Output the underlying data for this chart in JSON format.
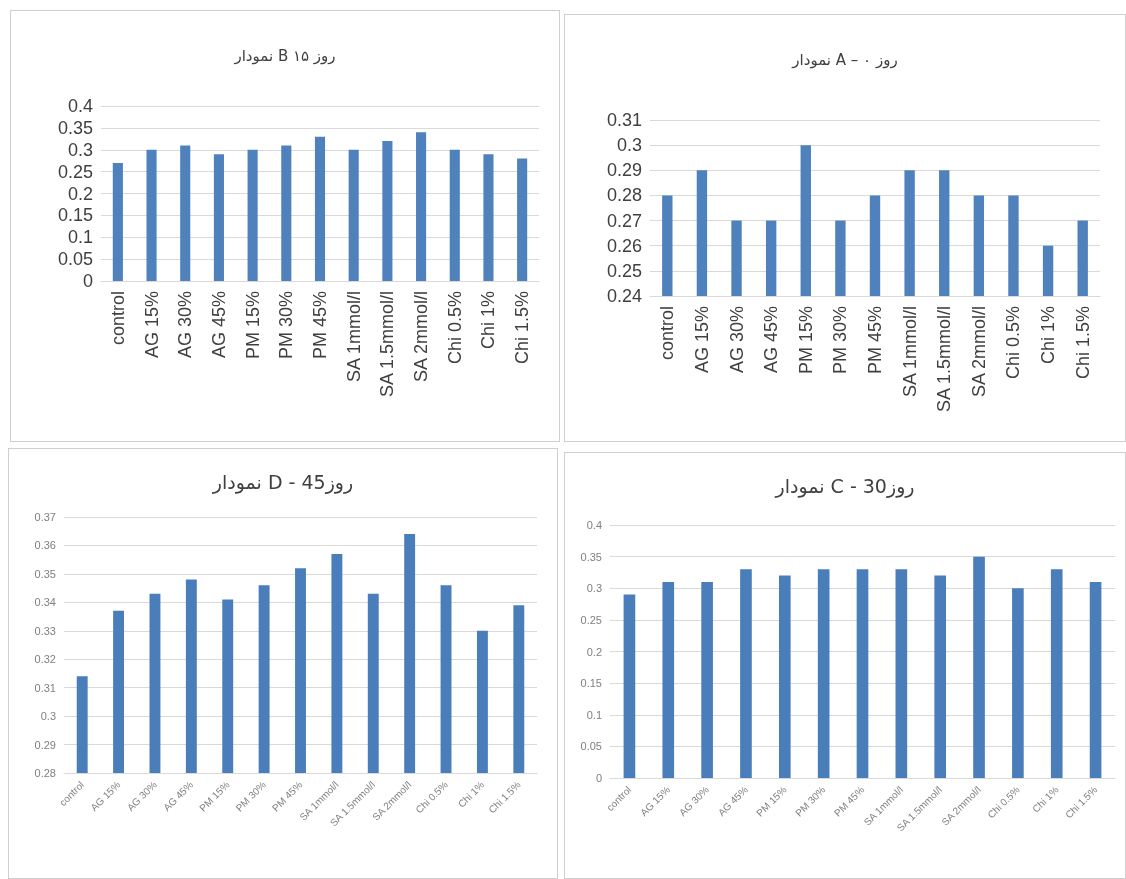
{
  "chart_data": [
    {
      "type": "bar",
      "title": "نمودار B روز ۱۵",
      "categories": [
        "control",
        "AG 15%",
        "AG 30%",
        "AG 45%",
        "PM 15%",
        "PM 30%",
        "PM 45%",
        "SA 1mmol/l",
        "SA 1.5mmol/l",
        "SA 2mmol/l",
        "Chi 0.5%",
        "Chi 1%",
        "Chi 1.5%"
      ],
      "values": [
        0.27,
        0.3,
        0.31,
        0.29,
        0.3,
        0.31,
        0.33,
        0.3,
        0.32,
        0.34,
        0.3,
        0.29,
        0.28
      ],
      "color": "#4f81bd",
      "ylim": [
        0,
        0.4
      ],
      "yticks": [
        0,
        0.05,
        0.1,
        0.15,
        0.2,
        0.25,
        0.3,
        0.35,
        0.4
      ],
      "grid": "y"
    },
    {
      "type": "bar",
      "title": "نمودار A – روز ۰",
      "categories": [
        "control",
        "AG 15%",
        "AG 30%",
        "AG 45%",
        "PM 15%",
        "PM 30%",
        "PM 45%",
        "SA 1mmol/l",
        "SA 1.5mmol/l",
        "SA 2mmol/l",
        "Chi 0.5%",
        "Chi 1%",
        "Chi 1.5%"
      ],
      "values": [
        0.28,
        0.29,
        0.27,
        0.27,
        0.3,
        0.27,
        0.28,
        0.29,
        0.29,
        0.28,
        0.28,
        0.26,
        0.27
      ],
      "color": "#4f81bd",
      "ylim": [
        0.24,
        0.31
      ],
      "yticks": [
        0.24,
        0.25,
        0.26,
        0.27,
        0.28,
        0.29,
        0.3,
        0.31
      ],
      "grid": "y"
    },
    {
      "type": "bar",
      "title": "نمودار D - روز45",
      "categories": [
        "control",
        "AG 15%",
        "AG 30%",
        "AG 45%",
        "PM 15%",
        "PM 30%",
        "PM 45%",
        "SA 1mmol/l",
        "SA 1.5mmol/l",
        "SA 2mmol/l",
        "Chi 0.5%",
        "Chi 1%",
        "Chi 1.5%"
      ],
      "values": [
        0.314,
        0.337,
        0.343,
        0.348,
        0.341,
        0.346,
        0.352,
        0.357,
        0.343,
        0.364,
        0.346,
        0.33,
        0.339
      ],
      "color": "#4a7ebb",
      "ylim": [
        0.28,
        0.37
      ],
      "yticks": [
        0.28,
        0.29,
        0.3,
        0.31,
        0.32,
        0.33,
        0.34,
        0.35,
        0.36,
        0.37
      ],
      "grid": "y"
    },
    {
      "type": "bar",
      "title": "نمودار C - روز30",
      "categories": [
        "control",
        "AG 15%",
        "AG 30%",
        "AG 45%",
        "PM 15%",
        "PM 30%",
        "PM 45%",
        "SA 1mmol/l",
        "SA 1.5mmol/l",
        "SA 2mmol/l",
        "Chi 0.5%",
        "Chi 1%",
        "Chi 1.5%"
      ],
      "values": [
        0.29,
        0.31,
        0.31,
        0.33,
        0.32,
        0.33,
        0.33,
        0.33,
        0.32,
        0.35,
        0.3,
        0.33,
        0.31
      ],
      "color": "#4a7ebb",
      "ylim": [
        0,
        0.4
      ],
      "yticks": [
        0,
        0.05,
        0.1,
        0.15,
        0.2,
        0.25,
        0.3,
        0.35,
        0.4
      ],
      "grid": "y"
    }
  ]
}
